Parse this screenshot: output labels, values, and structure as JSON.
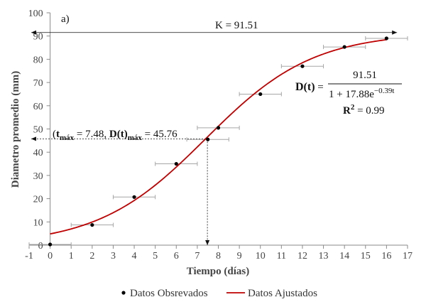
{
  "chart_data": {
    "type": "scatter",
    "panel_label": "a)",
    "xlabel": "Tiempo (días)",
    "ylabel": "Diametro promedio (mm)",
    "xlim": [
      -1,
      17
    ],
    "ylim": [
      0,
      100
    ],
    "x_ticks": [
      -1,
      0,
      1,
      2,
      3,
      4,
      5,
      6,
      7,
      8,
      9,
      10,
      11,
      12,
      13,
      14,
      15,
      16,
      17
    ],
    "y_ticks": [
      0,
      10,
      20,
      30,
      40,
      50,
      60,
      70,
      80,
      90,
      100
    ],
    "grid": false,
    "legend_position": "bottom",
    "series": [
      {
        "name": "Datos Obsrevados",
        "kind": "points",
        "color": "#000000",
        "points": [
          {
            "x": 0,
            "y": 0.3,
            "x_err": 1
          },
          {
            "x": 2,
            "y": 8.7,
            "x_err": 1
          },
          {
            "x": 4,
            "y": 20.7,
            "x_err": 1
          },
          {
            "x": 6,
            "y": 35,
            "x_err": 1
          },
          {
            "x": 7.5,
            "y": 45.5,
            "x_err": 1
          },
          {
            "x": 8,
            "y": 50.5,
            "x_err": 1
          },
          {
            "x": 10,
            "y": 65,
            "x_err": 1
          },
          {
            "x": 12,
            "y": 77,
            "x_err": 1
          },
          {
            "x": 14,
            "y": 85.3,
            "x_err": 1
          },
          {
            "x": 16,
            "y": 89,
            "x_err": 1
          }
        ]
      },
      {
        "name": "Datos Ajustados",
        "kind": "line",
        "color": "#c00000",
        "model": {
          "K": 91.51,
          "a": 17.88,
          "r": 0.39
        },
        "x_range": [
          0,
          16
        ]
      }
    ],
    "annotations": {
      "k_label": "K = 91.51",
      "k_value": 91.51,
      "tmax_value": 7.48,
      "dmax_value": 45.76,
      "tmax_text": {
        "open": "(",
        "t": "t",
        "t_sub": "máx",
        "eq1": " = 7.48, ",
        "d": "D(t)",
        "d_sub": "máx",
        "eq2": " = 45.76"
      },
      "equation": {
        "lhs": "D(t)",
        "eq": " = ",
        "numerator": "91.51",
        "denominator_base": "1 + 17.88e",
        "denominator_exp": "−0.39t"
      },
      "r2": {
        "r": "R",
        "sup": "2",
        "val": " = 0.99"
      }
    }
  }
}
